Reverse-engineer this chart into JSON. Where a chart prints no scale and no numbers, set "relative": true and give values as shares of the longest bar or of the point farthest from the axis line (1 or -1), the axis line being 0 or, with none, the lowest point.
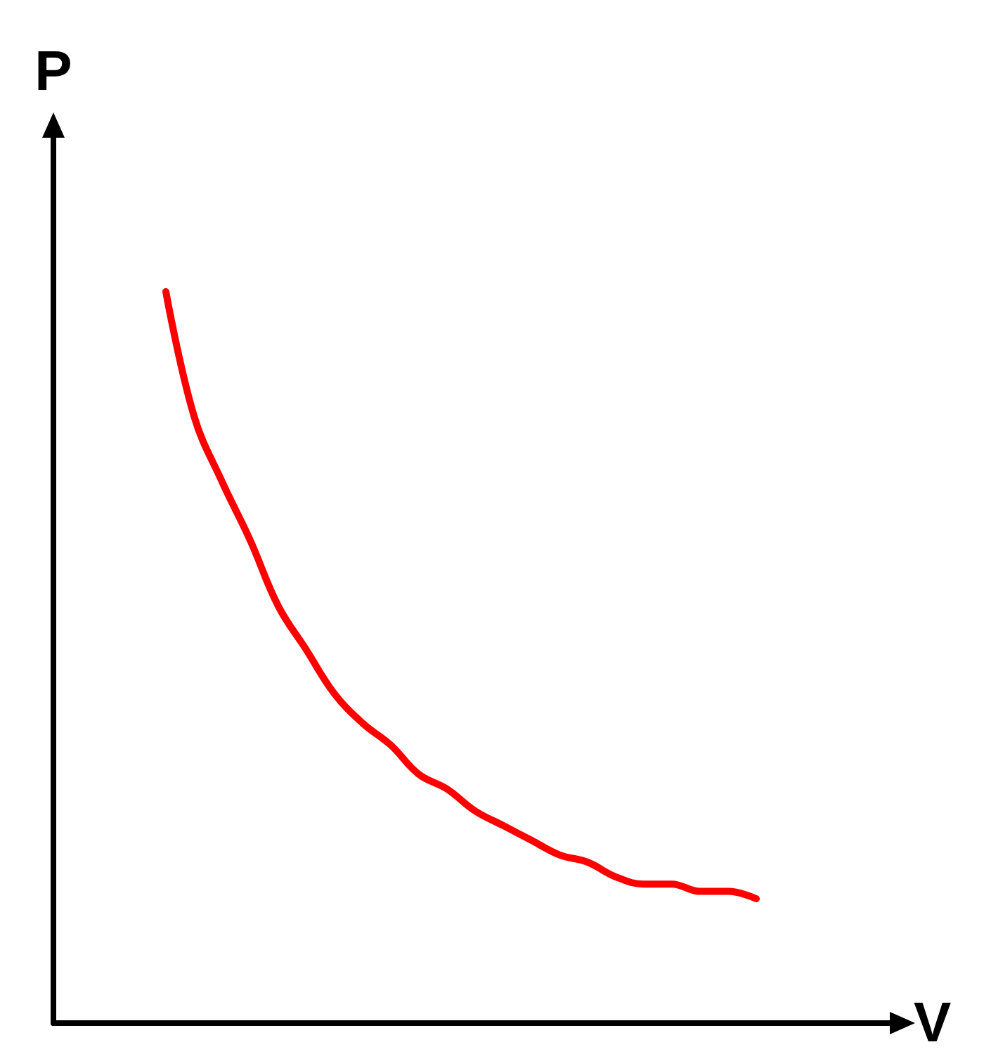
{
  "chart_data": {
    "type": "line",
    "xlabel": "V",
    "ylabel": "P",
    "relative": true,
    "grid": false,
    "marker": "none",
    "line_style": "solid",
    "categories": [
      null,
      null,
      null,
      null,
      null,
      null,
      null,
      null,
      null,
      null,
      null,
      null,
      null,
      null,
      null,
      null,
      null,
      null,
      null,
      null,
      null,
      null,
      null,
      null,
      null,
      null,
      null,
      null,
      null,
      null,
      null
    ],
    "series": [
      {
        "color": "#ff0000",
        "values": [
          null,
          null,
          null,
          null,
          1,
          0.83,
          0.74,
          0.66,
          0.57,
          0.51,
          0.45,
          0.41,
          0.38,
          0.34,
          0.32,
          0.29,
          0.27,
          0.25,
          0.23,
          0.22,
          0.2,
          0.19,
          0.19,
          0.18,
          0.18,
          0.17,
          null,
          null,
          null,
          null,
          null
        ]
      }
    ]
  }
}
